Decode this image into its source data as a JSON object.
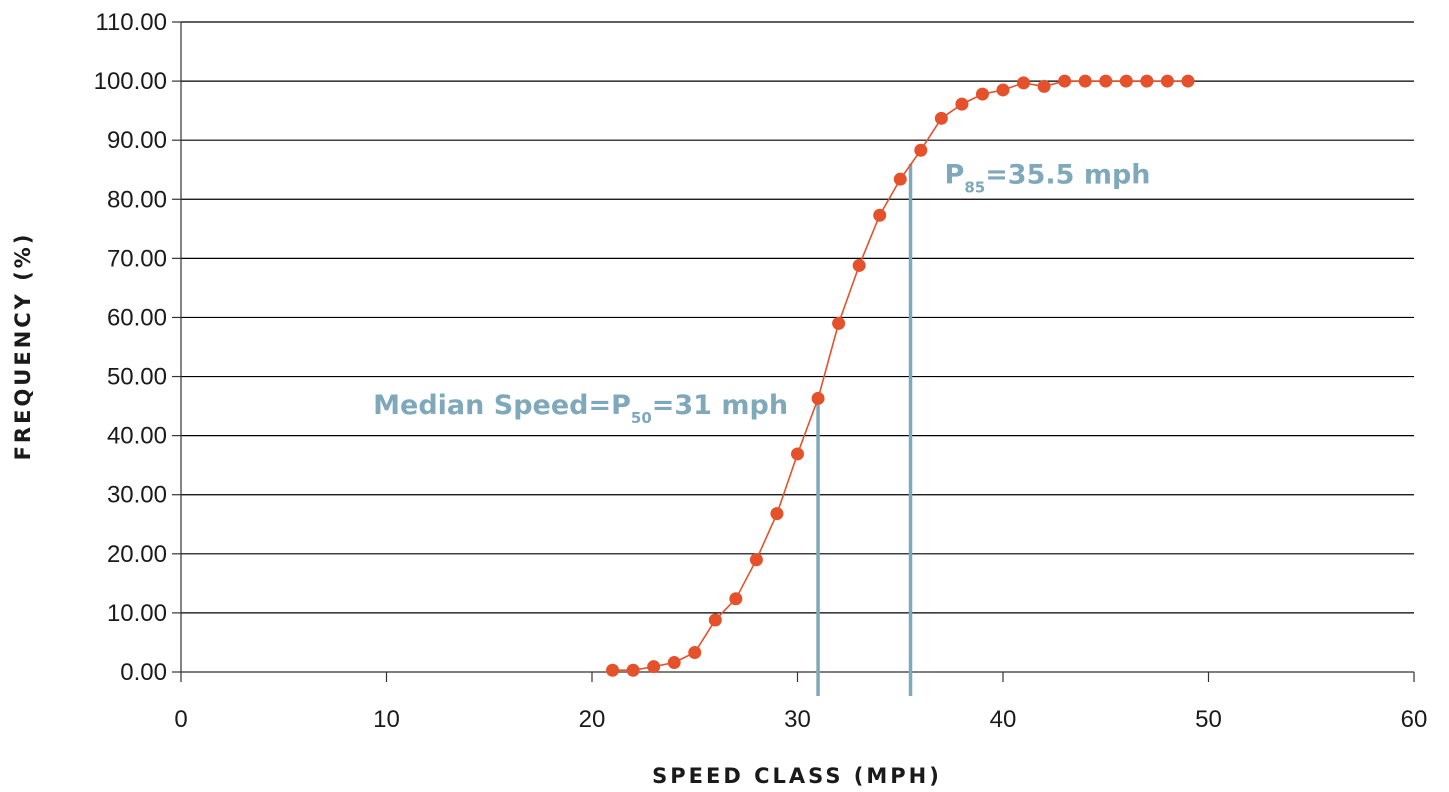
{
  "colors": {
    "series": "#E4512B",
    "annotation": "#7FA9BA",
    "grid": "#000000",
    "axis": "#333333",
    "text": "#1a1a1a"
  },
  "chart_data": {
    "type": "scatter",
    "title": "",
    "xlabel": "SPEED CLASS (MPH)",
    "ylabel": "FREQUENCY (%)",
    "xlim": [
      0,
      60
    ],
    "ylim": [
      0,
      110
    ],
    "x_ticks": [
      0,
      10,
      20,
      30,
      40,
      50,
      60
    ],
    "x_tick_labels": [
      "0",
      "10",
      "20",
      "30",
      "40",
      "50",
      "60"
    ],
    "y_ticks": [
      0,
      10,
      20,
      30,
      40,
      50,
      60,
      70,
      80,
      90,
      100,
      110
    ],
    "y_tick_labels": [
      "0.00",
      "10.00",
      "20.00",
      "30.00",
      "40.00",
      "50.00",
      "60.00",
      "70.00",
      "80.00",
      "90.00",
      "100.00",
      "110.00"
    ],
    "grid": "horizontal",
    "legend": "none",
    "series": [
      {
        "style": "line+markers",
        "points": [
          [
            21,
            0.3
          ],
          [
            22,
            0.3
          ],
          [
            23,
            0.9
          ],
          [
            24,
            1.6
          ],
          [
            25,
            3.3
          ],
          [
            26,
            8.8
          ],
          [
            27,
            12.4
          ],
          [
            28,
            19.0
          ],
          [
            29,
            26.8
          ],
          [
            30,
            36.9
          ],
          [
            31,
            46.3
          ],
          [
            32,
            59.0
          ],
          [
            33,
            68.8
          ],
          [
            34,
            77.3
          ],
          [
            35,
            83.4
          ],
          [
            36,
            88.3
          ],
          [
            37,
            93.7
          ],
          [
            38,
            96.1
          ],
          [
            39,
            97.8
          ],
          [
            40,
            98.5
          ],
          [
            41,
            99.7
          ],
          [
            42,
            99.1
          ],
          [
            43,
            100
          ],
          [
            44,
            100
          ],
          [
            45,
            100
          ],
          [
            46,
            100
          ],
          [
            47,
            100
          ],
          [
            48,
            100
          ],
          [
            49,
            100
          ]
        ]
      }
    ],
    "annotations": [
      {
        "name": "median",
        "x": 31,
        "line_top_y": 47,
        "text_main": "Median Speed=P",
        "text_sub": "50",
        "text_tail": "=31 mph",
        "anchor": "end",
        "label_y": 45
      },
      {
        "name": "p85",
        "x": 35.5,
        "line_top_y": 86,
        "text_main": "P",
        "text_sub": "85",
        "text_tail": "=35.5 mph",
        "anchor": "start",
        "label_y": 84
      }
    ]
  }
}
